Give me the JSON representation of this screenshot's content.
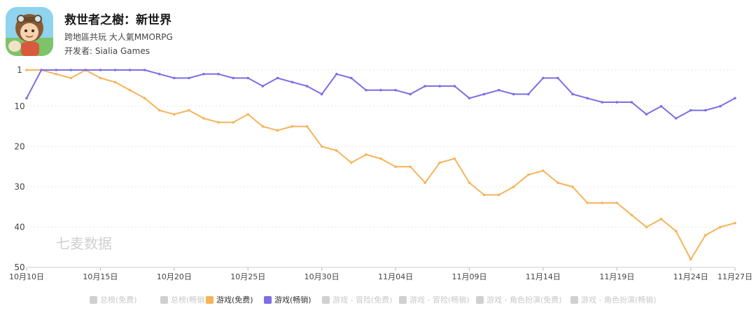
{
  "app": {
    "title": "救世者之樹：新世界",
    "subtitle": "跨地區共玩 大人氣MMORPG",
    "developer_label": "开发者: ",
    "developer": "Sialia Games"
  },
  "watermark": "七麦数据",
  "colors": {
    "free": "#f5b45a",
    "grossing": "#7b6ee6",
    "inactive": "#d0d0d0",
    "grid": "#e6e6e6"
  },
  "legend": [
    {
      "label": "总榜(免费)",
      "active": false,
      "color": "#d0d0d0"
    },
    {
      "label": "总榜(畅销)",
      "active": false,
      "color": "#d0d0d0"
    },
    {
      "label": "游戏(免费)",
      "active": true,
      "color": "#f5b45a"
    },
    {
      "label": "游戏(畅销)",
      "active": true,
      "color": "#7b6ee6"
    },
    {
      "label": "游戏 - 冒险(免费)",
      "active": false,
      "color": "#d0d0d0"
    },
    {
      "label": "游戏 - 冒险(畅销)",
      "active": false,
      "color": "#d0d0d0"
    },
    {
      "label": "游戏 - 角色扮演(免费)",
      "active": false,
      "color": "#d0d0d0"
    },
    {
      "label": "游戏 - 角色扮演(畅销)",
      "active": false,
      "color": "#d0d0d0"
    }
  ],
  "chart_data": {
    "type": "line",
    "title": "",
    "xlabel": "",
    "ylabel": "",
    "ylim": [
      1,
      50
    ],
    "y_inverted": true,
    "yticks": [
      "1",
      "10",
      "20",
      "30",
      "40",
      "50"
    ],
    "ytick_values": [
      1,
      10,
      20,
      30,
      40,
      50
    ],
    "x_tick_labels": [
      "10月10日",
      "10月15日",
      "10月20日",
      "10月25日",
      "10月30日",
      "11月04日",
      "11月09日",
      "11月14日",
      "11月19日",
      "11月24日",
      "11月27日"
    ],
    "x_tick_index": [
      0,
      5,
      10,
      15,
      20,
      25,
      30,
      35,
      40,
      45,
      48
    ],
    "x_start": "10月10日",
    "x_end": "11月27日",
    "grid": "horizontal",
    "legend_position": "bottom",
    "series": [
      {
        "name": "游戏(免费)",
        "values": [
          1,
          1,
          2,
          3,
          1,
          3,
          4,
          6,
          8,
          11,
          12,
          11,
          13,
          14,
          14,
          12,
          15,
          16,
          15,
          15,
          20,
          21,
          24,
          22,
          23,
          25,
          25,
          29,
          24,
          23,
          29,
          32,
          32,
          30,
          27,
          26,
          29,
          30,
          34,
          34,
          34,
          37,
          40,
          38,
          41,
          48,
          42,
          40,
          39
        ]
      },
      {
        "name": "游戏(畅销)",
        "values": [
          8,
          1,
          1,
          1,
          1,
          1,
          1,
          1,
          1,
          2,
          3,
          3,
          2,
          2,
          3,
          3,
          5,
          3,
          4,
          5,
          7,
          2,
          3,
          6,
          6,
          6,
          7,
          5,
          5,
          5,
          8,
          7,
          6,
          7,
          7,
          3,
          3,
          7,
          8,
          9,
          9,
          9,
          12,
          10,
          13,
          11,
          11,
          10,
          8
        ]
      }
    ]
  }
}
